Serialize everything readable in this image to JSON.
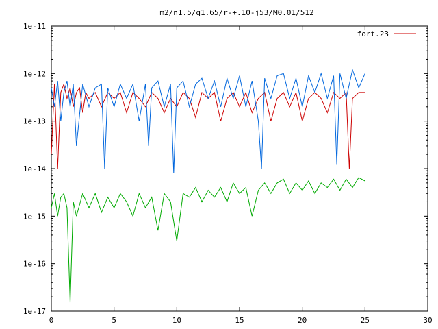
{
  "chart_data": {
    "type": "line",
    "title": "m2/n1.5/q1.65/r-+.10-j53/M0.01/512",
    "xlabel": "",
    "ylabel": "",
    "xlim": [
      0,
      30
    ],
    "ylim": [
      1e-17,
      1e-11
    ],
    "yscale": "log",
    "xticks": [
      "0",
      "5",
      "10",
      "15",
      "20",
      "25",
      "30"
    ],
    "yticks": [
      "1e-17",
      "1e-16",
      "1e-15",
      "1e-14",
      "1e-13",
      "1e-12",
      "1e-11"
    ],
    "legend": {
      "position": "top-right",
      "entries": [
        "fort.23"
      ]
    },
    "series": [
      {
        "name": "fort.23",
        "color": "#cc0000",
        "x": [
          0,
          0.25,
          0.5,
          0.75,
          1.0,
          1.25,
          1.5,
          1.75,
          2.0,
          2.25,
          2.5,
          2.75,
          3.0,
          3.5,
          4.0,
          4.5,
          5.0,
          5.5,
          6.0,
          6.5,
          7.0,
          7.5,
          8.0,
          8.5,
          9.0,
          9.5,
          10.0,
          10.5,
          11.0,
          11.5,
          12.0,
          12.5,
          13.0,
          13.5,
          14.0,
          14.5,
          15.0,
          15.5,
          16.0,
          16.5,
          17.0,
          17.5,
          18.0,
          18.5,
          19.0,
          19.5,
          20.0,
          20.5,
          21.0,
          21.5,
          22.0,
          22.5,
          23.0,
          23.5,
          23.75,
          24.0,
          24.5,
          25.0
        ],
        "y": [
          2e-14,
          6e-13,
          1e-14,
          4e-13,
          6e-13,
          3e-13,
          5e-13,
          2e-13,
          4e-13,
          5e-13,
          1.5e-13,
          4e-13,
          3e-13,
          4e-13,
          2e-13,
          4e-13,
          3e-13,
          4e-13,
          1.5e-13,
          4e-13,
          3e-13,
          2e-13,
          4e-13,
          3e-13,
          1.5e-13,
          3e-13,
          2e-13,
          4e-13,
          3e-13,
          1.2e-13,
          4e-13,
          3e-13,
          4e-13,
          1e-13,
          3e-13,
          4e-13,
          2e-13,
          4e-13,
          1.5e-13,
          3e-13,
          4e-13,
          1e-13,
          3e-13,
          4e-13,
          2e-13,
          4e-13,
          1e-13,
          3e-13,
          4e-13,
          3e-13,
          1.5e-13,
          4e-13,
          3e-13,
          4e-13,
          1e-14,
          3e-13,
          4e-13,
          4e-13
        ]
      },
      {
        "color": "#0066dd",
        "x": [
          0,
          0.25,
          0.5,
          0.75,
          1.0,
          1.25,
          1.5,
          1.75,
          2.0,
          2.5,
          3.0,
          3.5,
          4.0,
          4.25,
          4.5,
          5.0,
          5.5,
          6.0,
          6.5,
          7.0,
          7.5,
          7.75,
          8.0,
          8.5,
          9.0,
          9.5,
          9.75,
          10.0,
          10.5,
          11.0,
          11.5,
          12.0,
          12.5,
          13.0,
          13.5,
          14.0,
          14.5,
          15.0,
          15.5,
          16.0,
          16.5,
          16.75,
          17.0,
          17.5,
          18.0,
          18.5,
          19.0,
          19.5,
          20.0,
          20.5,
          21.0,
          21.5,
          22.0,
          22.5,
          22.75,
          23.0,
          23.5,
          24.0,
          24.5,
          25.0
        ],
        "y": [
          5e-13,
          2e-13,
          7e-13,
          1e-13,
          4e-13,
          7e-13,
          2e-13,
          6e-13,
          3e-14,
          6e-13,
          2e-13,
          5e-13,
          6e-13,
          1e-14,
          5e-13,
          2e-13,
          6e-13,
          3e-13,
          6e-13,
          1e-13,
          6e-13,
          3e-14,
          5e-13,
          7e-13,
          2e-13,
          6e-13,
          8e-15,
          5e-13,
          7e-13,
          2e-13,
          6e-13,
          8e-13,
          3e-13,
          7e-13,
          2e-13,
          8e-13,
          3e-13,
          9e-13,
          2e-13,
          7e-13,
          1e-13,
          1e-14,
          8e-13,
          3e-13,
          9e-13,
          1e-12,
          3e-13,
          8e-13,
          2e-13,
          9e-13,
          4e-13,
          1e-12,
          3e-13,
          9e-13,
          1.2e-14,
          1e-12,
          3e-13,
          1.2e-12,
          5e-13,
          1e-12
        ]
      },
      {
        "color": "#00aa00",
        "x": [
          0,
          0.25,
          0.5,
          0.75,
          1.0,
          1.25,
          1.5,
          1.75,
          2.0,
          2.5,
          3.0,
          3.5,
          4.0,
          4.5,
          5.0,
          5.5,
          6.0,
          6.5,
          7.0,
          7.5,
          8.0,
          8.5,
          9.0,
          9.5,
          10.0,
          10.5,
          11.0,
          11.5,
          12.0,
          12.5,
          13.0,
          13.5,
          14.0,
          14.5,
          15.0,
          15.5,
          16.0,
          16.5,
          17.0,
          17.5,
          18.0,
          18.5,
          19.0,
          19.5,
          20.0,
          20.5,
          21.0,
          21.5,
          22.0,
          22.5,
          23.0,
          23.5,
          24.0,
          24.5,
          25.0
        ],
        "y": [
          1.5e-15,
          3e-15,
          1e-15,
          2.5e-15,
          3e-15,
          1.5e-15,
          1.5e-17,
          2e-15,
          1e-15,
          3e-15,
          1.5e-15,
          3e-15,
          1.2e-15,
          2.5e-15,
          1.5e-15,
          3e-15,
          2e-15,
          1e-15,
          3e-15,
          1.5e-15,
          2.5e-15,
          5e-16,
          3e-15,
          2e-15,
          3e-16,
          3e-15,
          2.5e-15,
          4e-15,
          2e-15,
          3.5e-15,
          2.5e-15,
          4e-15,
          2e-15,
          5e-15,
          3e-15,
          4e-15,
          1e-15,
          3.5e-15,
          5e-15,
          3e-15,
          5e-15,
          6e-15,
          3e-15,
          5e-15,
          3.5e-15,
          5.5e-15,
          3e-15,
          5e-15,
          4e-15,
          6e-15,
          3.5e-15,
          6e-15,
          4e-15,
          6.5e-15,
          5.5e-15
        ]
      }
    ]
  }
}
